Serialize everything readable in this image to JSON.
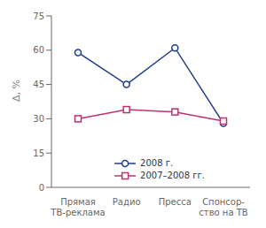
{
  "chart_data": {
    "type": "line",
    "categories": [
      "Прямая\nТВ-реклама",
      "Радио",
      "Пресса",
      "Спонсор-\nство на ТВ"
    ],
    "series": [
      {
        "name": "2008 г.",
        "color": "#1f3a8a",
        "marker": "circle",
        "line_style": "solid",
        "values": [
          59,
          45,
          61,
          28
        ]
      },
      {
        "name": "2007–2008 гг.",
        "color": "#c03070",
        "marker": "square",
        "line_style": "solid",
        "values": [
          30,
          34,
          33,
          29
        ]
      }
    ],
    "ylabel": "Δ, %",
    "ylim": [
      0,
      75
    ],
    "yticks": [
      0,
      15,
      30,
      45,
      60,
      75
    ],
    "grid": false,
    "legend": "lower center"
  }
}
